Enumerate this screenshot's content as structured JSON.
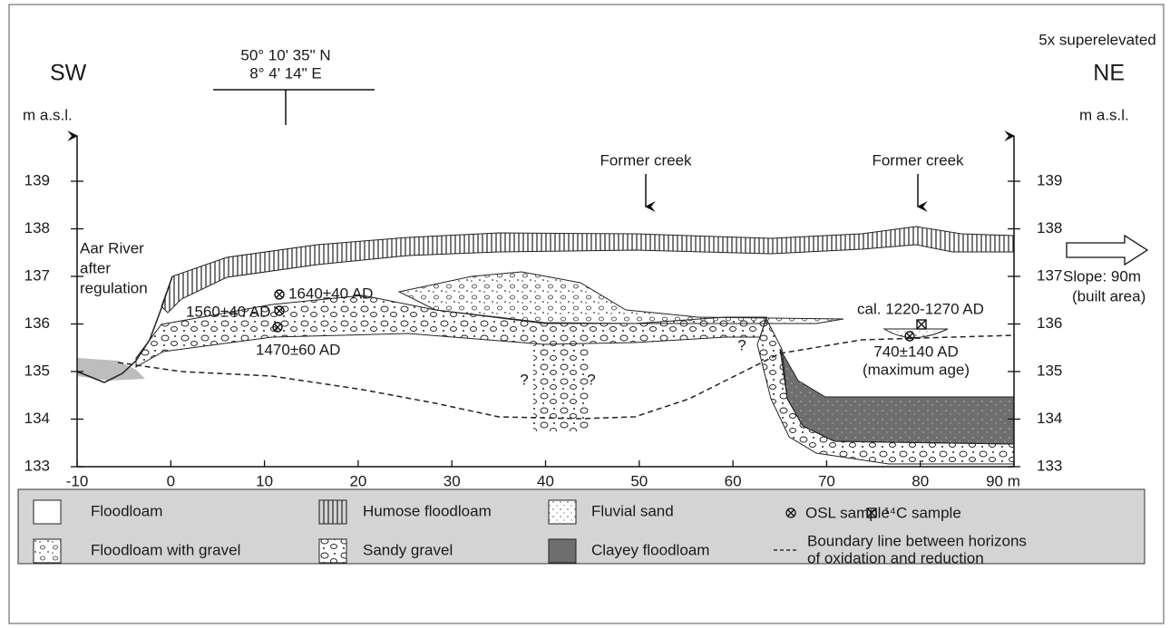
{
  "header": {
    "left_direction": "SW",
    "right_direction": "NE",
    "coordinates": [
      "50° 10' 35\" N",
      "8° 4' 14\" E"
    ],
    "superelevation": "5x superelevated"
  },
  "axes": {
    "left_label": "m a.s.l.",
    "right_label": "m a.s.l.",
    "yticks": [
      133,
      134,
      135,
      136,
      137,
      138,
      139
    ],
    "xticks": [
      -10,
      0,
      10,
      20,
      30,
      40,
      50,
      60,
      70,
      80,
      {
        "value": 90,
        "label": "90 m"
      }
    ]
  },
  "annotations": {
    "creek_1": "Former creek",
    "creek_2": "Former creek",
    "river": [
      "Aar River",
      "after",
      "regulation"
    ],
    "osl_1": "1640±40 AD",
    "osl_2": "1560±40 AD",
    "osl_3": "1470±60 AD",
    "c14": "cal. 1220-1270 AD",
    "osl_4": "740±140 AD",
    "osl_4_note": "(maximum age)",
    "questions": [
      "?",
      "?",
      "?"
    ],
    "slope": [
      "Slope: 90m",
      "(built area)"
    ]
  },
  "legend": {
    "items": [
      "Floodloam",
      "Humose floodloam",
      "Fluvial sand",
      "OSL sample",
      "¹⁴C sample",
      "Floodloam with gravel",
      "Sandy gravel",
      "Clayey floodloam"
    ],
    "boundary": [
      "Boundary line between horizons",
      "of oxidation and reduction"
    ]
  }
}
